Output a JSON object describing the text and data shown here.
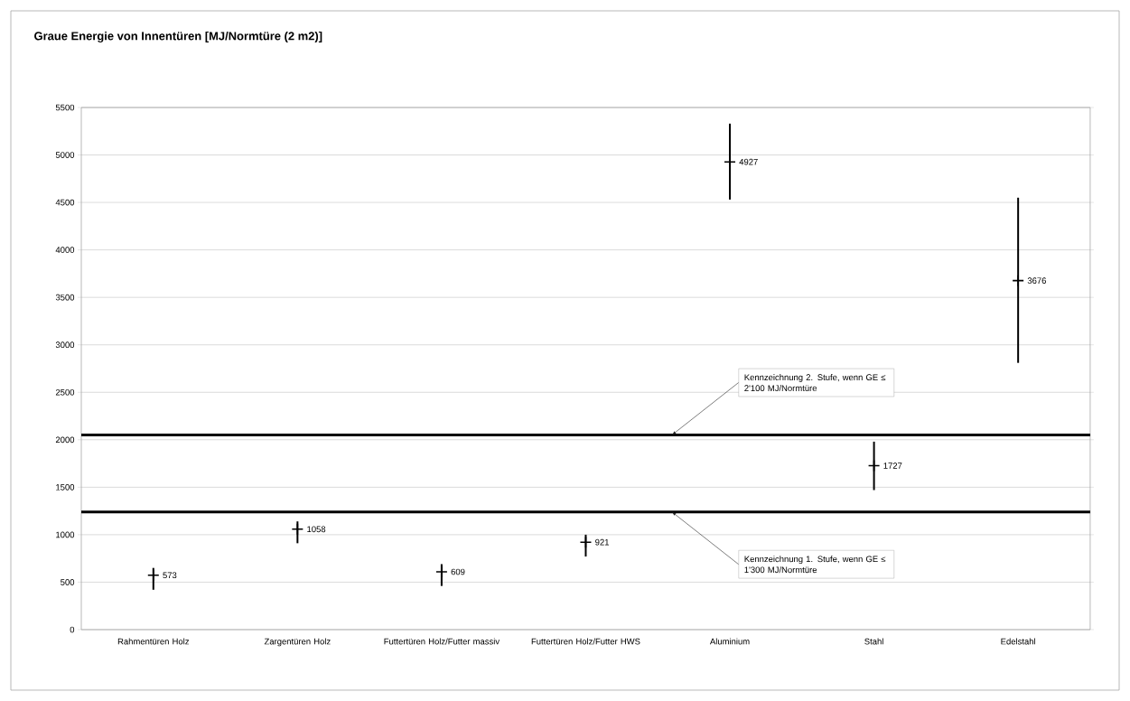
{
  "chart_data": {
    "type": "scatter",
    "title": "Graue Energie von Innentüren [MJ/Normtüre (2 m2)]",
    "categories": [
      "Rahmentüren Holz",
      "Zargentüren Holz",
      "Futtertüren Holz/Futter massiv",
      "Futtertüren Holz/Futter HWS",
      "Aluminium",
      "Stahl",
      "Edelstahl"
    ],
    "values": [
      573,
      1058,
      609,
      921,
      4927,
      1727,
      3676
    ],
    "errors": [
      [
        420,
        650
      ],
      [
        910,
        1140
      ],
      [
        460,
        690
      ],
      [
        770,
        1000
      ],
      [
        4530,
        5330
      ],
      [
        1470,
        1980
      ],
      [
        2810,
        4550
      ]
    ],
    "color": "#000000",
    "data_labels": true,
    "ylim": [
      0,
      5500
    ],
    "yticks": [
      0,
      500,
      1000,
      1500,
      2000,
      2500,
      3000,
      3500,
      4000,
      4500,
      5000,
      5500
    ],
    "grid": "y",
    "marker": "cross",
    "ref_lines": [
      {
        "axis": "y",
        "value": 2050,
        "label": "Kennzeichnung 2. Stufe, wenn GE ≤ 2'100 MJ/Normtüre",
        "color": "#000000"
      },
      {
        "axis": "y",
        "value": 1240,
        "label": "Kennzeichnung 1. Stufe, wenn GE ≤ 1'300 MJ/Normtüre",
        "color": "#000000"
      }
    ]
  }
}
